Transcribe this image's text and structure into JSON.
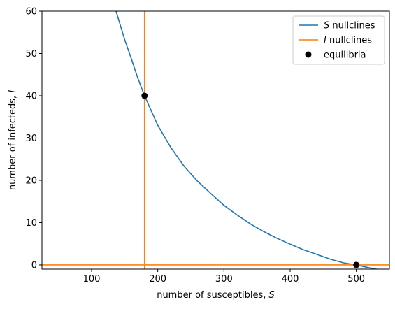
{
  "chart_data": {
    "type": "line",
    "xlabel_prefix": "number of susceptibles, ",
    "xlabel_var": "S",
    "ylabel_prefix": "number of infecteds, ",
    "ylabel_var": "I",
    "xlim": [
      25,
      550
    ],
    "ylim": [
      -1,
      60
    ],
    "xticks": [
      100,
      200,
      300,
      400,
      500
    ],
    "yticks": [
      0,
      10,
      20,
      30,
      40,
      50,
      60
    ],
    "series": [
      {
        "name_var": "S",
        "name_suffix": " nullclines",
        "color": "#1f77b4",
        "kind": "curve",
        "x": [
          137,
          150,
          160,
          170,
          180,
          190,
          200,
          220,
          240,
          260,
          280,
          300,
          320,
          340,
          360,
          380,
          400,
          420,
          440,
          460,
          480,
          500,
          520,
          540
        ],
        "y": [
          60.0,
          53.3,
          48.8,
          44.1,
          40.0,
          36.5,
          33.0,
          27.7,
          23.3,
          19.8,
          16.9,
          14.1,
          11.8,
          9.7,
          7.9,
          6.3,
          4.9,
          3.6,
          2.5,
          1.4,
          0.5,
          0.0,
          -0.7,
          -1.3
        ]
      },
      {
        "name_var": "I",
        "name_suffix": " nullclines",
        "color": "#ff7f0e",
        "kind": "lines",
        "vertical_x": 180,
        "horizontal_y": 0
      }
    ],
    "equilibria": {
      "name": "equilibria",
      "color": "#000000",
      "points": [
        {
          "x": 180,
          "y": 40
        },
        {
          "x": 500,
          "y": 0
        }
      ]
    },
    "legend_placement": "top-right",
    "grid": false
  }
}
